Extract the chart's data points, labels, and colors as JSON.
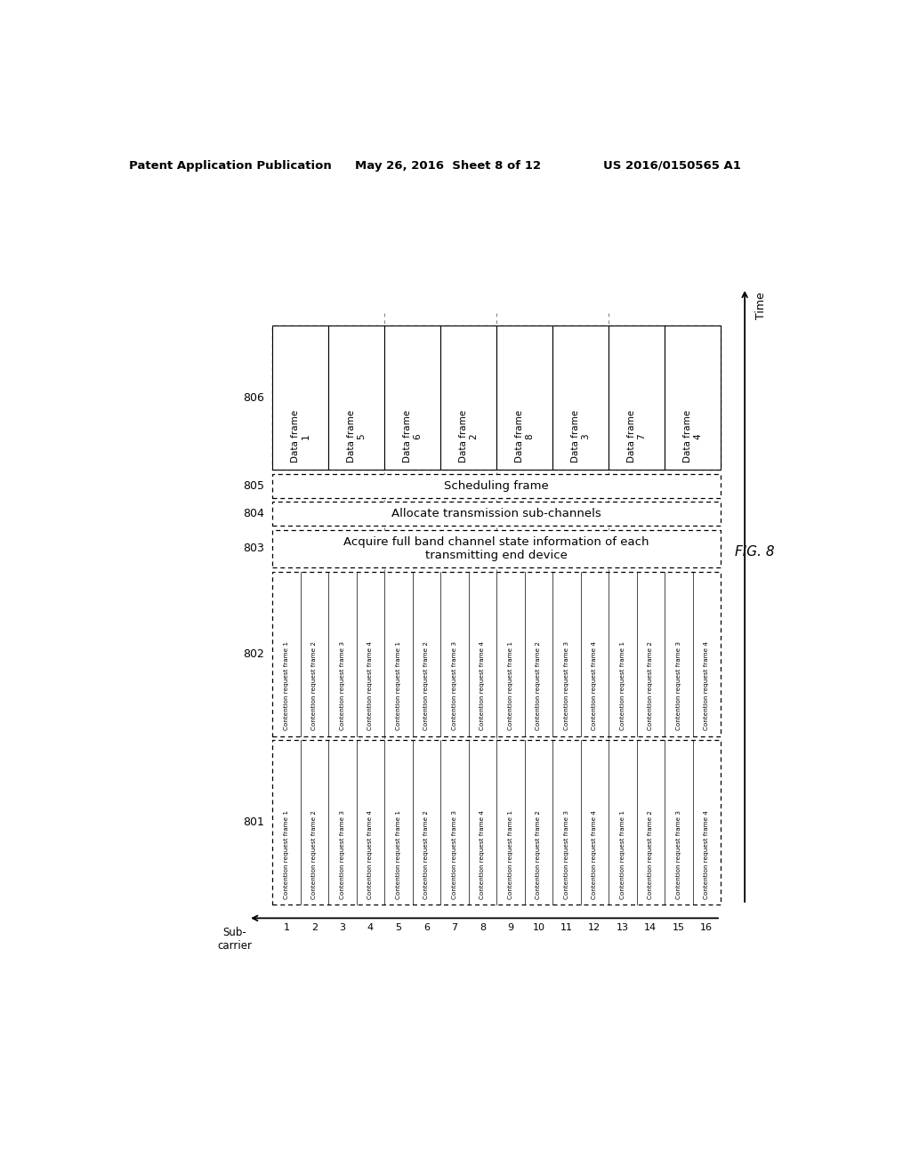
{
  "title_left": "Patent Application Publication",
  "title_mid": "May 26, 2016  Sheet 8 of 12",
  "title_right": "US 2016/0150565 A1",
  "fig_label": "FIG. 8",
  "background_color": "#ffffff",
  "subcarrier_labels": [
    "1",
    "2",
    "3",
    "4",
    "5",
    "6",
    "7",
    "8",
    "9",
    "10",
    "11",
    "12",
    "13",
    "14",
    "15",
    "16"
  ],
  "row_labels_801": [
    "Contention request frame 1",
    "Contention request frame 2",
    "Contention request frame 3",
    "Contention request frame 4",
    "Contention request frame 1",
    "Contention request frame 2",
    "Contention request frame 3",
    "Contention request frame 4",
    "Contention request frame 1",
    "Contention request frame 2",
    "Contention request frame 3",
    "Contention request frame 4",
    "Contention request frame 1",
    "Contention request frame 2",
    "Contention request frame 3",
    "Contention request frame 4"
  ],
  "row_labels_802": [
    "Contention request frame 1",
    "Contention request frame 2",
    "Contention request frame 3",
    "Contention request frame 4",
    "Contention request frame 1",
    "Contention request frame 2",
    "Contention request frame 3",
    "Contention request frame 4",
    "Contention request frame 1",
    "Contention request frame 2",
    "Contention request frame 3",
    "Contention request frame 4",
    "Contention request frame 1",
    "Contention request frame 2",
    "Contention request frame 3",
    "Contention request frame 4"
  ],
  "label_803": "Acquire full band channel state information of each\ntransmitting end device",
  "label_804": "Allocate transmission sub-channels",
  "label_805": "Scheduling frame",
  "data_frame_labels": [
    "Data frame\n1",
    "Data frame\n5",
    "Data frame\n6",
    "Data frame\n2",
    "Data frame\n8",
    "Data frame\n3",
    "Data frame\n7",
    "Data frame\n4"
  ],
  "time_label": "Time",
  "subcarrier_label": "Sub-\ncarrier"
}
